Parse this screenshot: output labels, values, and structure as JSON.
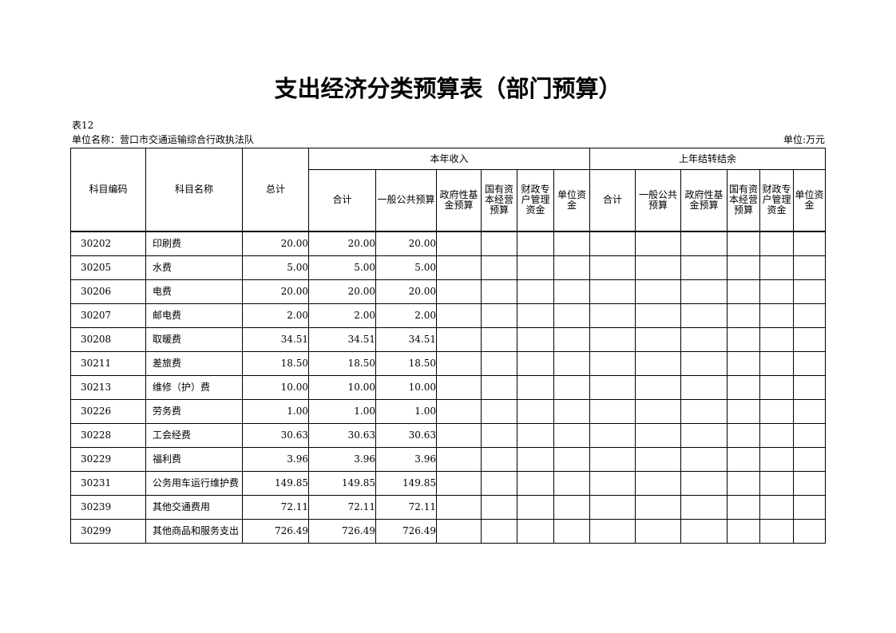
{
  "title": "支出经济分类预算表（部门预算）",
  "table_no": "表12",
  "unit_name": "单位名称：营口市交通运输综合行政执法队",
  "money_unit": "单位:万元",
  "headers": {
    "code": "科目编码",
    "name": "科目名称",
    "total": "总计",
    "group1": "本年收入",
    "group2": "上年结转结余",
    "g1": [
      "合计",
      "一般公共预算",
      "政府性基金预算",
      "国有资本经营预算",
      "财政专户管理资金",
      "单位资金"
    ],
    "g2": [
      "合计",
      "一般公共预算",
      "政府性基金预算",
      "国有资本经营预算",
      "财政专户管理资金",
      "单位资金"
    ]
  },
  "rows": [
    {
      "code": "30202",
      "name": "印刷费",
      "total": "20.00",
      "sum": "20.00",
      "general": "20.00"
    },
    {
      "code": "30205",
      "name": "水费",
      "total": "5.00",
      "sum": "5.00",
      "general": "5.00"
    },
    {
      "code": "30206",
      "name": "电费",
      "total": "20.00",
      "sum": "20.00",
      "general": "20.00"
    },
    {
      "code": "30207",
      "name": "邮电费",
      "total": "2.00",
      "sum": "2.00",
      "general": "2.00"
    },
    {
      "code": "30208",
      "name": "取暖费",
      "total": "34.51",
      "sum": "34.51",
      "general": "34.51"
    },
    {
      "code": "30211",
      "name": "差旅费",
      "total": "18.50",
      "sum": "18.50",
      "general": "18.50"
    },
    {
      "code": "30213",
      "name": "维修（护）费",
      "total": "10.00",
      "sum": "10.00",
      "general": "10.00"
    },
    {
      "code": "30226",
      "name": "劳务费",
      "total": "1.00",
      "sum": "1.00",
      "general": "1.00"
    },
    {
      "code": "30228",
      "name": "工会经费",
      "total": "30.63",
      "sum": "30.63",
      "general": "30.63"
    },
    {
      "code": "30229",
      "name": "福利费",
      "total": "3.96",
      "sum": "3.96",
      "general": "3.96"
    },
    {
      "code": "30231",
      "name": "公务用车运行维护费",
      "total": "149.85",
      "sum": "149.85",
      "general": "149.85"
    },
    {
      "code": "30239",
      "name": "其他交通费用",
      "total": "72.11",
      "sum": "72.11",
      "general": "72.11"
    },
    {
      "code": "30299",
      "name": "其他商品和服务支出",
      "total": "726.49",
      "sum": "726.49",
      "general": "726.49"
    }
  ]
}
